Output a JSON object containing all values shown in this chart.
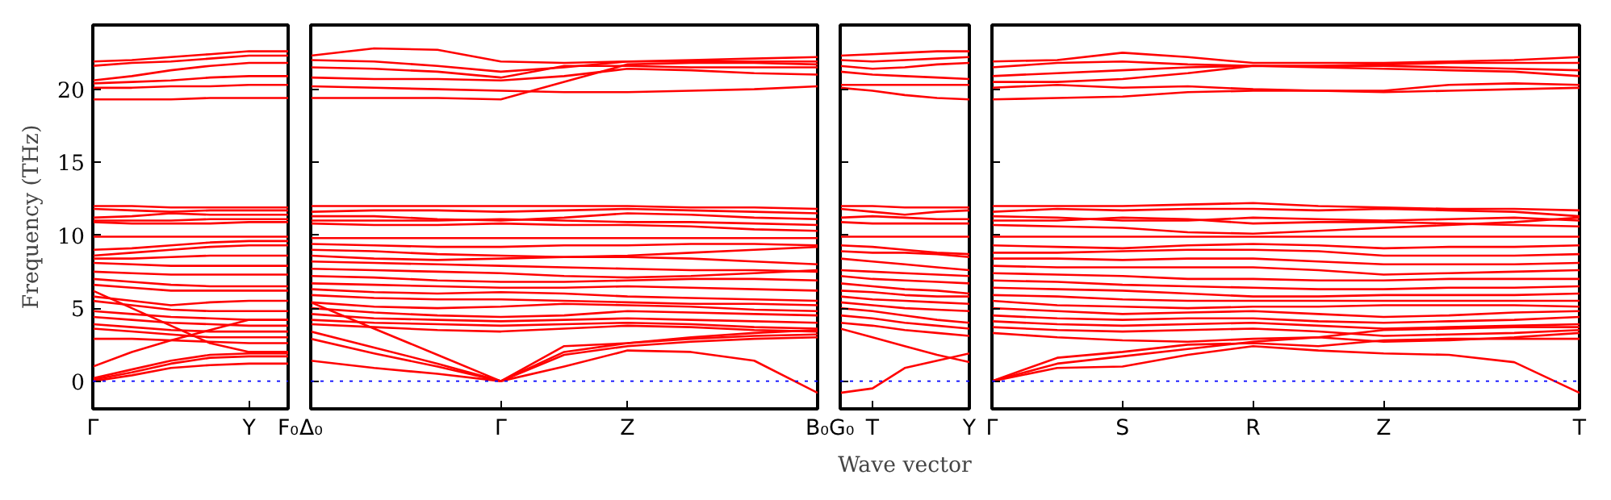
{
  "chart_data": [
    {
      "type": "line",
      "ylabel": "Frequency (THz)",
      "ylim": [
        -1.9,
        24.4
      ],
      "yticks": [
        0,
        5,
        10,
        15,
        20
      ],
      "categories": [
        "Γ",
        null,
        null,
        null,
        "Y",
        "F₀"
      ],
      "ref_lines": [
        {
          "axis": "y",
          "value": 0,
          "color": "#0000ff",
          "line_style": "dotted"
        }
      ],
      "series": [
        {
          "color": "#ff0000",
          "values": [
            21.9,
            22.0,
            22.2,
            22.4,
            22.6,
            22.6
          ]
        },
        {
          "color": "#ff0000",
          "values": [
            21.6,
            21.8,
            21.9,
            22.1,
            22.3,
            22.3
          ]
        },
        {
          "color": "#ff0000",
          "values": [
            20.6,
            20.9,
            21.3,
            21.6,
            21.8,
            21.8
          ]
        },
        {
          "color": "#ff0000",
          "values": [
            20.4,
            20.5,
            20.6,
            20.8,
            20.9,
            20.9
          ]
        },
        {
          "color": "#ff0000",
          "values": [
            20.1,
            20.1,
            20.2,
            20.2,
            20.3,
            20.3
          ]
        },
        {
          "color": "#ff0000",
          "values": [
            19.3,
            19.3,
            19.3,
            19.4,
            19.4,
            19.4
          ]
        },
        {
          "color": "#ff0000",
          "values": [
            12.0,
            12.0,
            11.9,
            11.9,
            11.9,
            11.9
          ]
        },
        {
          "color": "#ff0000",
          "values": [
            11.8,
            11.7,
            11.6,
            11.7,
            11.7,
            11.7
          ]
        },
        {
          "color": "#ff0000",
          "values": [
            11.2,
            11.3,
            11.5,
            11.4,
            11.4,
            11.4
          ]
        },
        {
          "color": "#ff0000",
          "values": [
            11.0,
            11.0,
            11.0,
            11.1,
            11.1,
            11.1
          ]
        },
        {
          "color": "#ff0000",
          "values": [
            10.9,
            10.8,
            10.8,
            10.8,
            10.9,
            10.9
          ]
        },
        {
          "color": "#ff0000",
          "values": [
            9.9,
            9.9,
            9.9,
            9.9,
            9.9,
            9.9
          ]
        },
        {
          "color": "#ff0000",
          "values": [
            9.0,
            9.1,
            9.3,
            9.5,
            9.6,
            9.6
          ]
        },
        {
          "color": "#ff0000",
          "values": [
            8.6,
            8.8,
            9.0,
            9.2,
            9.3,
            9.3
          ]
        },
        {
          "color": "#ff0000",
          "values": [
            8.4,
            8.4,
            8.5,
            8.6,
            8.6,
            8.6
          ]
        },
        {
          "color": "#ff0000",
          "values": [
            8.1,
            8.0,
            7.9,
            7.9,
            7.9,
            7.9
          ]
        },
        {
          "color": "#ff0000",
          "values": [
            7.5,
            7.4,
            7.3,
            7.3,
            7.3,
            7.3
          ]
        },
        {
          "color": "#ff0000",
          "values": [
            7.0,
            6.8,
            6.6,
            6.5,
            6.5,
            6.5
          ]
        },
        {
          "color": "#ff0000",
          "values": [
            6.6,
            6.4,
            6.2,
            6.2,
            6.2,
            6.2
          ]
        },
        {
          "color": "#ff0000",
          "values": [
            6.2,
            5.0,
            3.8,
            2.6,
            2.0,
            2.0
          ]
        },
        {
          "color": "#ff0000",
          "values": [
            5.8,
            5.5,
            5.2,
            5.4,
            5.5,
            5.5
          ]
        },
        {
          "color": "#ff0000",
          "values": [
            5.5,
            5.2,
            4.9,
            4.8,
            4.8,
            4.8
          ]
        },
        {
          "color": "#ff0000",
          "values": [
            4.8,
            4.6,
            4.4,
            4.3,
            4.2,
            4.2
          ]
        },
        {
          "color": "#ff0000",
          "values": [
            4.4,
            4.2,
            4.0,
            3.9,
            3.8,
            3.8
          ]
        },
        {
          "color": "#ff0000",
          "values": [
            3.9,
            3.7,
            3.5,
            3.4,
            3.4,
            3.4
          ]
        },
        {
          "color": "#ff0000",
          "values": [
            3.6,
            3.4,
            3.2,
            3.0,
            3.0,
            3.0
          ]
        },
        {
          "color": "#ff0000",
          "values": [
            2.9,
            2.9,
            2.8,
            2.7,
            2.6,
            2.6
          ]
        },
        {
          "color": "#ff0000",
          "values": [
            1.0,
            2.0,
            2.8,
            3.5,
            4.2,
            4.2
          ]
        },
        {
          "color": "#ff0000",
          "values": [
            0.2,
            0.8,
            1.4,
            1.8,
            1.9,
            1.9
          ]
        },
        {
          "color": "#ff0000",
          "values": [
            0.1,
            0.6,
            1.2,
            1.6,
            1.7,
            1.7
          ]
        },
        {
          "color": "#ff0000",
          "values": [
            0.0,
            0.4,
            0.9,
            1.1,
            1.2,
            1.2
          ]
        }
      ]
    },
    {
      "type": "line",
      "tick_labels": "x",
      "ylim": [
        -1.9,
        24.4
      ],
      "yticks": [
        0,
        5,
        10,
        15,
        20
      ],
      "categories": [
        "Δ₀",
        null,
        null,
        "Γ",
        null,
        "Z",
        null,
        null,
        "B₀"
      ],
      "ref_lines": [
        {
          "axis": "y",
          "value": 0,
          "color": "#0000ff",
          "line_style": "dotted"
        }
      ],
      "series": [
        {
          "color": "#ff0000",
          "values": [
            22.3,
            22.8,
            22.7,
            21.9,
            21.8,
            21.9,
            22.0,
            22.1,
            22.2
          ]
        },
        {
          "color": "#ff0000",
          "values": [
            22.0,
            21.9,
            21.6,
            21.2,
            21.5,
            21.9,
            21.9,
            21.9,
            21.9
          ]
        },
        {
          "color": "#ff0000",
          "values": [
            21.5,
            21.4,
            21.2,
            20.8,
            21.6,
            21.6,
            21.5,
            21.5,
            21.5
          ]
        },
        {
          "color": "#ff0000",
          "values": [
            20.8,
            20.7,
            20.7,
            20.6,
            20.9,
            21.4,
            21.3,
            21.1,
            21.0
          ]
        },
        {
          "color": "#ff0000",
          "values": [
            20.2,
            20.1,
            20.0,
            19.9,
            19.8,
            19.8,
            19.9,
            20.0,
            20.2
          ]
        },
        {
          "color": "#ff0000",
          "values": [
            19.4,
            19.4,
            19.4,
            19.3,
            20.5,
            21.7,
            21.8,
            21.8,
            21.7
          ]
        },
        {
          "color": "#ff0000",
          "values": [
            12.0,
            12.0,
            12.0,
            12.0,
            12.0,
            12.0,
            11.9,
            11.9,
            11.8
          ]
        },
        {
          "color": "#ff0000",
          "values": [
            11.6,
            11.7,
            11.7,
            11.6,
            11.7,
            11.8,
            11.7,
            11.6,
            11.5
          ]
        },
        {
          "color": "#ff0000",
          "values": [
            11.3,
            11.3,
            11.1,
            11.0,
            11.2,
            11.5,
            11.4,
            11.2,
            11.1
          ]
        },
        {
          "color": "#ff0000",
          "values": [
            11.0,
            11.0,
            11.0,
            11.1,
            11.0,
            10.9,
            10.9,
            10.8,
            10.7
          ]
        },
        {
          "color": "#ff0000",
          "values": [
            10.8,
            10.7,
            10.7,
            10.8,
            10.7,
            10.7,
            10.6,
            10.4,
            10.3
          ]
        },
        {
          "color": "#ff0000",
          "values": [
            9.8,
            9.8,
            9.8,
            9.8,
            9.8,
            9.8,
            9.8,
            9.8,
            9.8
          ]
        },
        {
          "color": "#ff0000",
          "values": [
            9.4,
            9.3,
            9.2,
            9.2,
            9.3,
            9.3,
            9.4,
            9.4,
            9.3
          ]
        },
        {
          "color": "#ff0000",
          "values": [
            9.0,
            8.9,
            8.7,
            8.6,
            8.5,
            8.6,
            8.8,
            9.0,
            9.2
          ]
        },
        {
          "color": "#ff0000",
          "values": [
            8.6,
            8.4,
            8.3,
            8.4,
            8.5,
            8.5,
            8.4,
            8.2,
            8.0
          ]
        },
        {
          "color": "#ff0000",
          "values": [
            8.2,
            8.1,
            8.0,
            7.9,
            7.8,
            7.7,
            7.6,
            7.6,
            7.5
          ]
        },
        {
          "color": "#ff0000",
          "values": [
            7.7,
            7.6,
            7.5,
            7.4,
            7.2,
            7.1,
            7.2,
            7.4,
            7.6
          ]
        },
        {
          "color": "#ff0000",
          "values": [
            7.2,
            7.1,
            6.9,
            6.8,
            6.8,
            6.9,
            7.0,
            7.0,
            6.9
          ]
        },
        {
          "color": "#ff0000",
          "values": [
            6.7,
            6.6,
            6.5,
            6.4,
            6.4,
            6.5,
            6.4,
            6.3,
            6.2
          ]
        },
        {
          "color": "#ff0000",
          "values": [
            6.3,
            6.1,
            6.0,
            6.1,
            6.0,
            5.8,
            5.7,
            5.6,
            5.5
          ]
        },
        {
          "color": "#ff0000",
          "values": [
            5.9,
            5.7,
            5.6,
            5.6,
            5.5,
            5.4,
            5.3,
            5.3,
            5.2
          ]
        },
        {
          "color": "#ff0000",
          "values": [
            5.4,
            5.1,
            5.0,
            5.1,
            5.3,
            5.2,
            5.1,
            4.9,
            4.8
          ]
        },
        {
          "color": "#ff0000",
          "values": [
            5.0,
            4.7,
            4.5,
            4.4,
            4.5,
            4.8,
            4.7,
            4.6,
            4.5
          ]
        },
        {
          "color": "#ff0000",
          "values": [
            4.6,
            4.3,
            4.2,
            4.1,
            4.2,
            4.3,
            4.2,
            4.1,
            4.0
          ]
        },
        {
          "color": "#ff0000",
          "values": [
            4.2,
            4.0,
            3.9,
            3.8,
            3.9,
            4.0,
            3.9,
            3.7,
            3.6
          ]
        },
        {
          "color": "#ff0000",
          "values": [
            3.9,
            3.7,
            3.5,
            3.4,
            3.6,
            3.8,
            3.7,
            3.5,
            3.4
          ]
        },
        {
          "color": "#ff0000",
          "values": [
            5.4,
            3.6,
            1.8,
            0.0,
            2.0,
            2.6,
            3.0,
            3.3,
            3.5
          ]
        },
        {
          "color": "#ff0000",
          "values": [
            3.4,
            2.3,
            1.2,
            0.0,
            2.4,
            2.6,
            2.9,
            3.1,
            3.2
          ]
        },
        {
          "color": "#ff0000",
          "values": [
            2.9,
            1.9,
            1.0,
            0.0,
            1.8,
            2.4,
            2.7,
            2.9,
            3.0
          ]
        },
        {
          "color": "#ff0000",
          "values": [
            1.4,
            0.9,
            0.5,
            0.0,
            1.0,
            2.1,
            2.0,
            1.4,
            -0.8
          ]
        }
      ]
    },
    {
      "type": "line",
      "tick_labels": "x",
      "xlabel": "Wave vector",
      "ylim": [
        -1.9,
        24.4
      ],
      "yticks": [
        0,
        5,
        10,
        15,
        20
      ],
      "categories": [
        "G₀",
        "T",
        null,
        null,
        "Y"
      ],
      "ref_lines": [
        {
          "axis": "y",
          "value": 0,
          "color": "#0000ff",
          "line_style": "dotted"
        }
      ],
      "series": [
        {
          "color": "#ff0000",
          "values": [
            22.3,
            22.4,
            22.5,
            22.6,
            22.6
          ]
        },
        {
          "color": "#ff0000",
          "values": [
            22.0,
            21.9,
            22.0,
            22.1,
            22.2
          ]
        },
        {
          "color": "#ff0000",
          "values": [
            21.6,
            21.4,
            21.5,
            21.7,
            21.8
          ]
        },
        {
          "color": "#ff0000",
          "values": [
            21.2,
            21.0,
            20.9,
            20.8,
            20.7
          ]
        },
        {
          "color": "#ff0000",
          "values": [
            20.3,
            20.3,
            20.3,
            20.3,
            20.3
          ]
        },
        {
          "color": "#ff0000",
          "values": [
            20.1,
            19.9,
            19.6,
            19.4,
            19.3
          ]
        },
        {
          "color": "#ff0000",
          "values": [
            12.0,
            12.0,
            11.9,
            11.9,
            11.9
          ]
        },
        {
          "color": "#ff0000",
          "values": [
            11.8,
            11.6,
            11.4,
            11.6,
            11.7
          ]
        },
        {
          "color": "#ff0000",
          "values": [
            11.2,
            11.3,
            11.2,
            11.1,
            11.1
          ]
        },
        {
          "color": "#ff0000",
          "values": [
            10.9,
            10.8,
            10.8,
            10.8,
            10.8
          ]
        },
        {
          "color": "#ff0000",
          "values": [
            9.9,
            9.9,
            9.9,
            9.9,
            9.9
          ]
        },
        {
          "color": "#ff0000",
          "values": [
            9.3,
            9.2,
            9.0,
            8.8,
            8.7
          ]
        },
        {
          "color": "#ff0000",
          "values": [
            8.9,
            8.8,
            8.8,
            8.7,
            8.5
          ]
        },
        {
          "color": "#ff0000",
          "values": [
            8.4,
            8.2,
            8.0,
            7.8,
            7.6
          ]
        },
        {
          "color": "#ff0000",
          "values": [
            7.6,
            7.5,
            7.4,
            7.3,
            7.2
          ]
        },
        {
          "color": "#ff0000",
          "values": [
            7.2,
            7.0,
            6.9,
            6.8,
            6.7
          ]
        },
        {
          "color": "#ff0000",
          "values": [
            6.7,
            6.5,
            6.3,
            6.2,
            6.0
          ]
        },
        {
          "color": "#ff0000",
          "values": [
            6.2,
            6.1,
            5.9,
            5.8,
            5.8
          ]
        },
        {
          "color": "#ff0000",
          "values": [
            5.8,
            5.6,
            5.5,
            5.4,
            5.3
          ]
        },
        {
          "color": "#ff0000",
          "values": [
            5.4,
            5.2,
            5.0,
            4.9,
            4.8
          ]
        },
        {
          "color": "#ff0000",
          "values": [
            5.0,
            4.8,
            4.5,
            4.2,
            4.0
          ]
        },
        {
          "color": "#ff0000",
          "values": [
            4.5,
            4.3,
            4.0,
            3.8,
            3.6
          ]
        },
        {
          "color": "#ff0000",
          "values": [
            4.0,
            3.8,
            3.5,
            3.3,
            3.1
          ]
        },
        {
          "color": "#ff0000",
          "values": [
            3.6,
            3.0,
            2.4,
            1.8,
            1.3
          ]
        },
        {
          "color": "#ff0000",
          "values": [
            -0.8,
            -0.5,
            0.9,
            1.4,
            1.9
          ]
        }
      ]
    },
    {
      "type": "line",
      "tick_labels": "x",
      "ylim": [
        -1.9,
        24.4
      ],
      "yticks": [
        0,
        5,
        10,
        15,
        20
      ],
      "categories": [
        "Γ",
        null,
        "S",
        null,
        "R",
        null,
        "Z",
        null,
        null,
        "T"
      ],
      "ref_lines": [
        {
          "axis": "y",
          "value": 0,
          "color": "#0000ff",
          "line_style": "dotted"
        }
      ],
      "series": [
        {
          "color": "#ff0000",
          "values": [
            21.9,
            22.0,
            22.5,
            22.2,
            21.8,
            21.8,
            21.8,
            21.9,
            22.0,
            22.2
          ]
        },
        {
          "color": "#ff0000",
          "values": [
            21.5,
            21.8,
            21.9,
            21.7,
            21.6,
            21.6,
            21.7,
            21.8,
            21.8,
            21.8
          ]
        },
        {
          "color": "#ff0000",
          "values": [
            20.9,
            21.1,
            21.3,
            21.5,
            21.6,
            21.6,
            21.6,
            21.5,
            21.4,
            21.3
          ]
        },
        {
          "color": "#ff0000",
          "values": [
            20.5,
            20.5,
            20.7,
            21.1,
            21.6,
            21.5,
            21.4,
            21.3,
            21.2,
            20.9
          ]
        },
        {
          "color": "#ff0000",
          "values": [
            20.1,
            20.3,
            20.1,
            20.2,
            20.0,
            19.9,
            19.9,
            20.3,
            20.4,
            20.3
          ]
        },
        {
          "color": "#ff0000",
          "values": [
            19.3,
            19.4,
            19.5,
            19.8,
            19.9,
            19.9,
            19.8,
            19.9,
            20.0,
            20.1
          ]
        },
        {
          "color": "#ff0000",
          "values": [
            12.0,
            12.0,
            12.0,
            12.1,
            12.2,
            12.0,
            11.9,
            11.8,
            11.8,
            11.7
          ]
        },
        {
          "color": "#ff0000",
          "values": [
            11.6,
            11.8,
            11.7,
            11.8,
            11.8,
            11.7,
            11.8,
            11.7,
            11.6,
            11.3
          ]
        },
        {
          "color": "#ff0000",
          "values": [
            11.3,
            11.2,
            11.0,
            11.0,
            11.2,
            11.1,
            11.0,
            11.1,
            11.2,
            11.0
          ]
        },
        {
          "color": "#ff0000",
          "values": [
            11.0,
            11.0,
            11.2,
            11.1,
            10.8,
            10.9,
            10.9,
            10.8,
            10.7,
            10.6
          ]
        },
        {
          "color": "#ff0000",
          "values": [
            10.7,
            10.6,
            10.5,
            10.2,
            10.1,
            10.3,
            10.5,
            10.7,
            10.9,
            11.2
          ]
        },
        {
          "color": "#ff0000",
          "values": [
            9.9,
            9.9,
            9.9,
            9.9,
            9.9,
            9.9,
            9.9,
            9.9,
            9.9,
            9.9
          ]
        },
        {
          "color": "#ff0000",
          "values": [
            9.3,
            9.2,
            9.1,
            9.3,
            9.4,
            9.3,
            9.1,
            9.2,
            9.2,
            9.3
          ]
        },
        {
          "color": "#ff0000",
          "values": [
            8.8,
            8.8,
            8.9,
            9.0,
            9.0,
            8.9,
            8.6,
            8.6,
            8.6,
            8.7
          ]
        },
        {
          "color": "#ff0000",
          "values": [
            8.4,
            8.4,
            8.3,
            8.4,
            8.4,
            8.2,
            8.0,
            8.0,
            8.0,
            8.1
          ]
        },
        {
          "color": "#ff0000",
          "values": [
            7.9,
            7.8,
            7.8,
            7.8,
            7.8,
            7.6,
            7.3,
            7.4,
            7.5,
            7.6
          ]
        },
        {
          "color": "#ff0000",
          "values": [
            7.4,
            7.3,
            7.2,
            7.0,
            7.0,
            6.9,
            6.9,
            7.0,
            7.0,
            7.0
          ]
        },
        {
          "color": "#ff0000",
          "values": [
            6.9,
            6.8,
            6.6,
            6.5,
            6.4,
            6.3,
            6.3,
            6.4,
            6.4,
            6.5
          ]
        },
        {
          "color": "#ff0000",
          "values": [
            6.4,
            6.3,
            6.2,
            6.0,
            5.8,
            5.8,
            5.9,
            5.9,
            5.9,
            6.0
          ]
        },
        {
          "color": "#ff0000",
          "values": [
            5.9,
            5.8,
            5.6,
            5.5,
            5.5,
            5.5,
            5.5,
            5.5,
            5.5,
            5.5
          ]
        },
        {
          "color": "#ff0000",
          "values": [
            5.5,
            5.2,
            5.1,
            5.0,
            5.1,
            5.1,
            5.2,
            5.2,
            5.2,
            5.1
          ]
        },
        {
          "color": "#ff0000",
          "values": [
            5.0,
            4.8,
            4.6,
            4.7,
            4.8,
            4.6,
            4.4,
            4.5,
            4.7,
            4.8
          ]
        },
        {
          "color": "#ff0000",
          "values": [
            4.5,
            4.3,
            4.2,
            4.3,
            4.3,
            4.1,
            4.0,
            4.1,
            4.2,
            4.4
          ]
        },
        {
          "color": "#ff0000",
          "values": [
            4.1,
            3.9,
            3.8,
            3.9,
            4.0,
            3.8,
            3.6,
            3.7,
            3.8,
            3.9
          ]
        },
        {
          "color": "#ff0000",
          "values": [
            3.7,
            3.5,
            3.4,
            3.5,
            3.6,
            3.4,
            3.1,
            3.2,
            3.3,
            3.5
          ]
        },
        {
          "color": "#ff0000",
          "values": [
            3.3,
            3.0,
            2.8,
            2.7,
            2.9,
            3.0,
            2.7,
            2.8,
            3.0,
            3.3
          ]
        },
        {
          "color": "#ff0000",
          "values": [
            0.0,
            1.6,
            2.0,
            2.5,
            2.6,
            2.4,
            2.8,
            2.9,
            2.9,
            2.9
          ]
        },
        {
          "color": "#ff0000",
          "values": [
            0.0,
            1.2,
            1.7,
            2.2,
            2.7,
            3.0,
            3.5,
            3.6,
            3.7,
            3.7
          ]
        },
        {
          "color": "#ff0000",
          "values": [
            0.0,
            0.9,
            1.0,
            1.8,
            2.4,
            2.1,
            1.9,
            1.8,
            1.3,
            -0.8
          ]
        }
      ]
    }
  ]
}
